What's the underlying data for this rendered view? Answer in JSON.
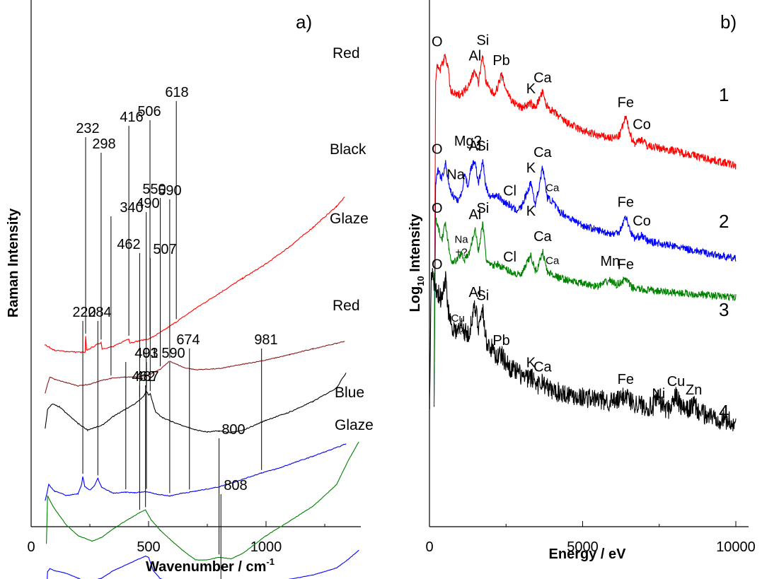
{
  "chart_data": [
    {
      "panel": "a)",
      "type": "line",
      "xlabel": "Wavenumber / cm",
      "xlabel_sup": "-1",
      "ylabel": "Raman  Intensity",
      "xlim": [
        0,
        1400
      ],
      "xticks": [
        0,
        500,
        1000
      ],
      "yticks_shown": false,
      "series": [
        {
          "name": "Red",
          "color": "#ff0000",
          "noise": 0.35,
          "x": [
            60,
            80,
            100,
            150,
            230,
            232,
            236,
            298,
            302,
            350,
            416,
            420,
            506,
            560,
            618,
            700,
            800,
            900,
            1000,
            1100,
            1200,
            1300,
            1335
          ],
          "y": [
            700,
            695,
            690,
            688,
            686,
            716,
            690,
            705,
            693,
            697,
            712,
            704,
            712,
            726,
            743,
            768,
            796,
            824,
            851,
            883,
            919,
            958,
            975
          ],
          "peaks": [
            {
              "x": 232,
              "label": "232"
            },
            {
              "x": 298,
              "label": "298"
            },
            {
              "x": 416,
              "label": "416"
            },
            {
              "x": 506,
              "label": "506"
            },
            {
              "x": 618,
              "label": "618"
            }
          ]
        },
        {
          "name": "Black",
          "color": "#8b1a1a",
          "noise": 0.25,
          "x": [
            60,
            70,
            80,
            100,
            150,
            200,
            250,
            300,
            340,
            400,
            450,
            500,
            550,
            590,
            620,
            650,
            700,
            800,
            900,
            1000,
            1100,
            1200,
            1300,
            1335
          ],
          "y": [
            610,
            628,
            640,
            636,
            630,
            624,
            627,
            634,
            638,
            640,
            641,
            644,
            655,
            670,
            664,
            658,
            654,
            656,
            664,
            672,
            682,
            693,
            703,
            707
          ],
          "peaks": [
            {
              "x": 340,
              "label": "340"
            },
            {
              "x": 550,
              "label": "550"
            },
            {
              "x": 590,
              "label": "590"
            }
          ]
        },
        {
          "name": "Glaze",
          "color": "#000000",
          "noise": 0.3,
          "x": [
            60,
            70,
            90,
            120,
            150,
            200,
            240,
            300,
            350,
            400,
            440,
            462,
            480,
            490,
            500,
            507,
            530,
            560,
            600,
            700,
            750,
            800,
            850,
            900,
            1000,
            1100,
            1200,
            1300,
            1340
          ],
          "y": [
            545,
            580,
            590,
            585,
            573,
            554,
            542,
            550,
            567,
            580,
            590,
            598,
            605,
            615,
            606,
            609,
            575,
            565,
            557,
            542,
            538,
            540,
            537,
            541,
            560,
            575,
            595,
            620,
            648
          ],
          "peaks": [
            {
              "x": 462,
              "label": "462"
            },
            {
              "x": 490,
              "label": "490"
            },
            {
              "x": 507,
              "label": "507"
            }
          ]
        },
        {
          "name": "Red",
          "color": "#0000ff",
          "noise": 0.25,
          "x": [
            60,
            75,
            100,
            150,
            200,
            215,
            220,
            228,
            250,
            270,
            284,
            300,
            350,
            403,
            440,
            491,
            540,
            590,
            640,
            674,
            700,
            800,
            900,
            981,
            1050,
            1100,
            1200,
            1300,
            1340
          ],
          "y": [
            410,
            440,
            428,
            420,
            423,
            440,
            455,
            437,
            430,
            438,
            452,
            435,
            424,
            426,
            425,
            427,
            422,
            419,
            424,
            426,
            428,
            436,
            450,
            462,
            470,
            478,
            493,
            509,
            516
          ],
          "peaks": [
            {
              "x": 220,
              "label": "220"
            },
            {
              "x": 284,
              "label": "284"
            },
            {
              "x": 403,
              "label": "403"
            },
            {
              "x": 491,
              "label": "491"
            },
            {
              "x": 590,
              "label": "590"
            },
            {
              "x": 674,
              "label": "674"
            },
            {
              "x": 981,
              "label": "981"
            }
          ]
        },
        {
          "name": "Blue",
          "color": "#008000",
          "noise": 0.15,
          "x": [
            65,
            70,
            80,
            100,
            150,
            200,
            260,
            300,
            350,
            400,
            440,
            462,
            487,
            510,
            550,
            600,
            650,
            700,
            750,
            800,
            850,
            900,
            1000,
            1100,
            1200,
            1300,
            1350,
            1380,
            1395
          ],
          "y": [
            330,
            420,
            410,
            395,
            365,
            345,
            335,
            342,
            358,
            372,
            382,
            388,
            393,
            375,
            355,
            335,
            316,
            300,
            300,
            305,
            302,
            312,
            345,
            372,
            400,
            440,
            485,
            508,
            520
          ],
          "peaks": [
            {
              "x": 462,
              "label": "462"
            },
            {
              "x": 487,
              "label": "487"
            },
            {
              "x": 800,
              "label": "800"
            }
          ]
        },
        {
          "name": "Glaze",
          "color": "#0000ff",
          "noise": 0.12,
          "x": [
            65,
            70,
            80,
            100,
            150,
            200,
            240,
            300,
            350,
            400,
            450,
            487,
            500,
            520,
            550,
            600,
            650,
            700,
            750,
            808,
            850,
            900,
            1000,
            1100,
            1200,
            1300,
            1350,
            1395
          ],
          "y": [
            230,
            278,
            284,
            280,
            275,
            266,
            258,
            266,
            280,
            290,
            300,
            307,
            305,
            280,
            265,
            258,
            254,
            248,
            244,
            252,
            247,
            245,
            257,
            264,
            272,
            285,
            301,
            318
          ],
          "peaks": [
            {
              "x": 808,
              "label": "808"
            }
          ]
        }
      ],
      "trace_labels": [
        "Red",
        "Black",
        "Glaze",
        "Red",
        "Blue",
        "Glaze"
      ]
    },
    {
      "panel": "b)",
      "type": "line",
      "xlabel": "Energy / eV",
      "ylabel": "Log",
      "ylabel_sub": "10",
      "ylabel_rest": "  Intensity",
      "xlim": [
        0,
        10000
      ],
      "xticks": [
        0,
        5000,
        10000
      ],
      "yticks_shown": false,
      "series": [
        {
          "name": "1",
          "color": "#ff0000",
          "noise": 2.2,
          "x": [
            150,
            200,
            250,
            350,
            400,
            525,
            600,
            700,
            900,
            1100,
            1250,
            1486,
            1600,
            1740,
            1850,
            2000,
            2100,
            2200,
            2346,
            2500,
            2700,
            3000,
            3313,
            3400,
            3500,
            3692,
            3800,
            4000,
            4500,
            5000,
            5500,
            6000,
            6200,
            6404,
            6600,
            6700,
            6930,
            7100,
            8000,
            9000,
            10000
          ],
          "y": [
            20,
            540,
            560,
            555,
            565,
            578,
            560,
            520,
            515,
            520,
            530,
            555,
            535,
            580,
            535,
            522,
            518,
            525,
            548,
            525,
            505,
            495,
            502,
            496,
            500,
            520,
            500,
            490,
            470,
            458,
            450,
            446,
            450,
            480,
            446,
            438,
            445,
            434,
            426,
            414,
            402
          ],
          "peaks": [
            {
              "x": 525,
              "label": "O"
            },
            {
              "x": 1486,
              "label": "Al"
            },
            {
              "x": 1740,
              "label": "Si"
            },
            {
              "x": 2346,
              "label": "Pb"
            },
            {
              "x": 3313,
              "label": "K"
            },
            {
              "x": 3692,
              "label": "Ca"
            },
            {
              "x": 6404,
              "label": "Fe"
            },
            {
              "x": 6930,
              "label": "Co"
            }
          ]
        },
        {
          "name": "2",
          "color": "#0000ff",
          "noise": 2.0,
          "x": [
            150,
            200,
            280,
            400,
            525,
            600,
            700,
            800,
            900,
            1041,
            1150,
            1254,
            1350,
            1486,
            1600,
            1740,
            1850,
            2000,
            2200,
            2400,
            2622,
            2800,
            3000,
            3313,
            3450,
            3550,
            3692,
            3850,
            4013,
            4200,
            4500,
            5000,
            5500,
            6000,
            6200,
            6404,
            6600,
            6700,
            6930,
            7100,
            8000,
            9000,
            10000
          ],
          "y": [
            20,
            375,
            395,
            380,
            405,
            382,
            360,
            352,
            345,
            355,
            390,
            368,
            398,
            410,
            372,
            410,
            365,
            352,
            355,
            345,
            338,
            330,
            335,
            375,
            340,
            360,
            400,
            350,
            345,
            330,
            320,
            306,
            298,
            292,
            296,
            320,
            292,
            285,
            290,
            281,
            272,
            262,
            252
          ],
          "peaks": [
            {
              "x": 525,
              "label": "O"
            },
            {
              "x": 1041,
              "label": "Na"
            },
            {
              "x": 1254,
              "label": "Mg?"
            },
            {
              "x": 1486,
              "label": "Al"
            },
            {
              "x": 1740,
              "label": "Si"
            },
            {
              "x": 2622,
              "label": "Cl"
            },
            {
              "x": 3313,
              "label": "K"
            },
            {
              "x": 3692,
              "label": "Ca"
            },
            {
              "x": 4013,
              "label": "Ca"
            },
            {
              "x": 6404,
              "label": "Fe"
            },
            {
              "x": 6930,
              "label": "Co"
            }
          ]
        },
        {
          "name": "3",
          "color": "#008000",
          "noise": 2.0,
          "x": [
            150,
            200,
            300,
            420,
            525,
            620,
            700,
            800,
            900,
            1041,
            1150,
            1300,
            1486,
            1600,
            1740,
            1850,
            2000,
            2200,
            2400,
            2622,
            2800,
            3000,
            3313,
            3450,
            3550,
            3692,
            3850,
            4013,
            4200,
            4500,
            5000,
            5500,
            5899,
            6100,
            6404,
            6600,
            7000,
            8000,
            9000,
            10000
          ],
          "y": [
            20,
            320,
            298,
            285,
            310,
            275,
            250,
            248,
            250,
            262,
            250,
            262,
            300,
            265,
            310,
            252,
            240,
            244,
            238,
            232,
            228,
            226,
            258,
            232,
            240,
            265,
            230,
            228,
            222,
            218,
            212,
            208,
            218,
            210,
            220,
            206,
            202,
            198,
            194,
            190
          ],
          "peaks": [
            {
              "x": 525,
              "label": "O"
            },
            {
              "x": 1041,
              "label": "Na\n+?"
            },
            {
              "x": 1486,
              "label": "Al"
            },
            {
              "x": 1740,
              "label": "Si"
            },
            {
              "x": 2622,
              "label": "Cl"
            },
            {
              "x": 3313,
              "label": "K"
            },
            {
              "x": 3692,
              "label": "Ca"
            },
            {
              "x": 4013,
              "label": "Ca"
            },
            {
              "x": 5899,
              "label": "Mn"
            },
            {
              "x": 6404,
              "label": "Fe"
            }
          ]
        },
        {
          "name": "4",
          "color": "#000000",
          "noise": 5.5,
          "x": [
            5,
            60,
            100,
            160,
            220,
            300,
            400,
            525,
            620,
            700,
            800,
            930,
            1050,
            1150,
            1250,
            1350,
            1486,
            1600,
            1740,
            1850,
            2000,
            2200,
            2346,
            2500,
            2700,
            3000,
            3200,
            3313,
            3450,
            3550,
            3692,
            3850,
            4000,
            4500,
            5000,
            5500,
            6000,
            6200,
            6404,
            6600,
            7000,
            7300,
            7478,
            7600,
            7800,
            8048,
            8200,
            8400,
            8630,
            8800,
            9000,
            9500,
            10000
          ],
          "y": [
            10,
            240,
            225,
            215,
            205,
            195,
            185,
            220,
            170,
            150,
            140,
            135,
            145,
            135,
            130,
            145,
            175,
            145,
            170,
            120,
            110,
            95,
            98,
            85,
            75,
            65,
            58,
            62,
            55,
            50,
            55,
            45,
            40,
            35,
            30,
            26,
            22,
            25,
            35,
            22,
            16,
            14,
            28,
            16,
            10,
            32,
            14,
            8,
            18,
            5,
            2,
            -5,
            -12
          ],
          "peaks": [
            {
              "x": 525,
              "label": "O"
            },
            {
              "x": 930,
              "label": "Cu\n+?"
            },
            {
              "x": 1486,
              "label": "Al"
            },
            {
              "x": 1740,
              "label": "Si"
            },
            {
              "x": 2346,
              "label": "Pb"
            },
            {
              "x": 3313,
              "label": "K"
            },
            {
              "x": 3692,
              "label": "Ca"
            },
            {
              "x": 6404,
              "label": "Fe"
            },
            {
              "x": 7478,
              "label": "Ni"
            },
            {
              "x": 8048,
              "label": "Cu"
            },
            {
              "x": 8630,
              "label": "Zn"
            }
          ]
        }
      ],
      "trace_labels": [
        "1",
        "2",
        "3",
        "4"
      ]
    }
  ]
}
